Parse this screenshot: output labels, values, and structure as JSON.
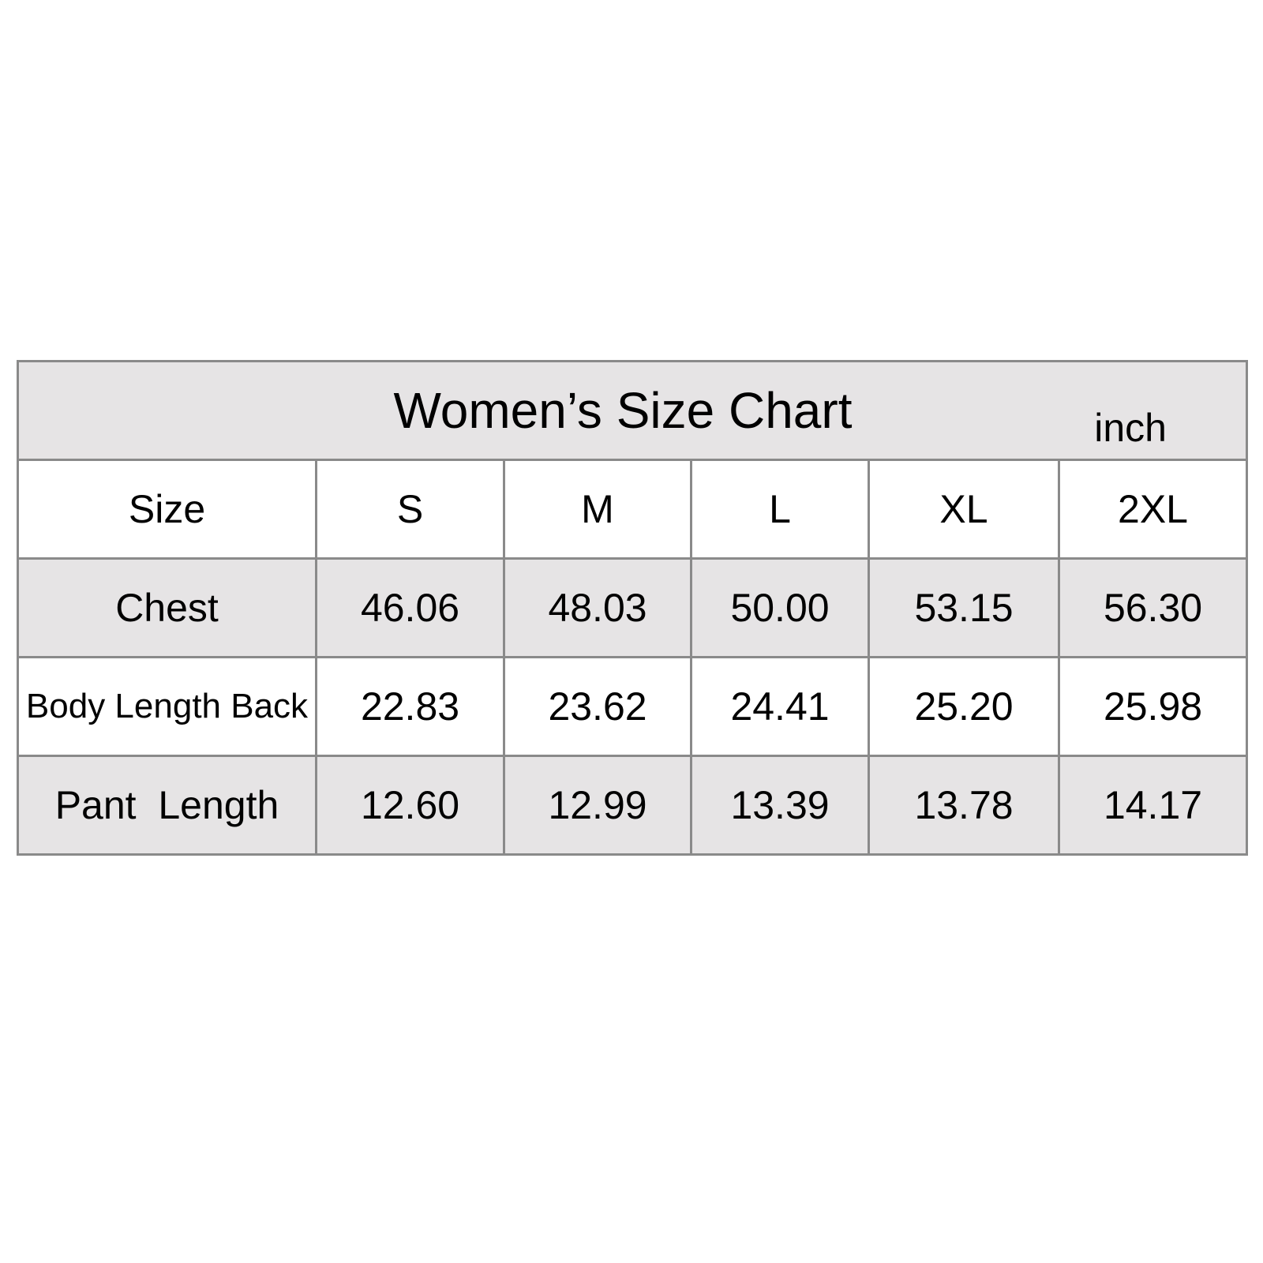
{
  "title": "Women’s Size Chart",
  "unit": "inch",
  "colors": {
    "shaded_row": "#e6e4e5",
    "border": "#8a8a8a"
  },
  "header": {
    "label": "Size",
    "sizes": [
      "S",
      "M",
      "L",
      "XL",
      "2XL"
    ]
  },
  "rows": [
    {
      "label": "Chest",
      "values": [
        "46.06",
        "48.03",
        "50.00",
        "53.15",
        "56.30"
      ]
    },
    {
      "label": "Body Length Back",
      "values": [
        "22.83",
        "23.62",
        "24.41",
        "25.20",
        "25.98"
      ]
    },
    {
      "label": "Pant  Length",
      "values": [
        "12.60",
        "12.99",
        "13.39",
        "13.78",
        "14.17"
      ]
    }
  ]
}
